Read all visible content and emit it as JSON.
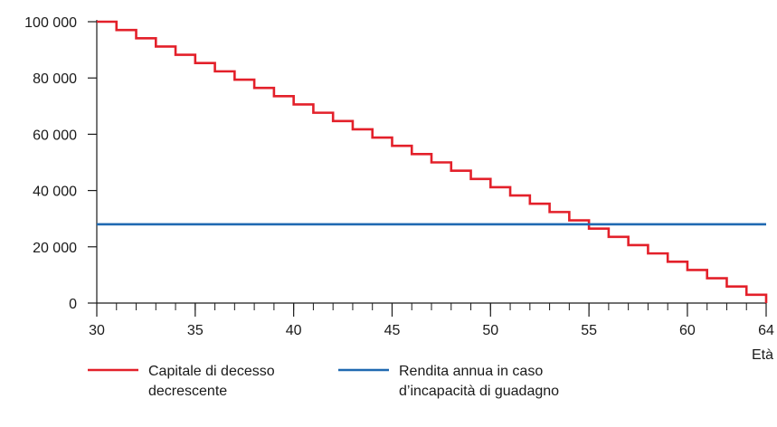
{
  "chart_data": {
    "type": "line",
    "title": "",
    "xlabel": "Età",
    "ylabel": "",
    "xlim": [
      30,
      64
    ],
    "ylim": [
      0,
      100000
    ],
    "x_ticks": [
      30,
      35,
      40,
      45,
      50,
      55,
      60,
      64
    ],
    "y_ticks": [
      0,
      20000,
      40000,
      60000,
      80000,
      100000
    ],
    "x_tick_labels": [
      "30",
      "35",
      "40",
      "45",
      "50",
      "55",
      "60",
      "64"
    ],
    "y_tick_labels": [
      "0",
      "20 000",
      "40 000",
      "60 000",
      "80 000",
      "100 000"
    ],
    "grid": false,
    "legend_position": "bottom",
    "series": [
      {
        "name": "Capitale di decesso decrescente",
        "legend_lines": [
          "Capitale di decesso",
          "decrescente"
        ],
        "color": "#e3202a",
        "style": "step",
        "x": [
          30,
          31,
          32,
          33,
          34,
          35,
          36,
          37,
          38,
          39,
          40,
          41,
          42,
          43,
          44,
          45,
          46,
          47,
          48,
          49,
          50,
          51,
          52,
          53,
          54,
          55,
          56,
          57,
          58,
          59,
          60,
          61,
          62,
          63,
          64
        ],
        "values": [
          100000,
          97059,
          94118,
          91176,
          88235,
          85294,
          82353,
          79412,
          76471,
          73529,
          70588,
          67647,
          64706,
          61765,
          58824,
          55882,
          52941,
          50000,
          47059,
          44118,
          41176,
          38235,
          35294,
          32353,
          29412,
          26471,
          23529,
          20588,
          17647,
          14706,
          11765,
          8824,
          5882,
          2941,
          0
        ]
      },
      {
        "name": "Rendita annua in caso d’incapacità di guadagno",
        "legend_lines": [
          "Rendita annua in caso",
          "d’incapacità di guadagno"
        ],
        "color": "#1f69b1",
        "style": "line",
        "x": [
          30,
          64
        ],
        "values": [
          28000,
          28000
        ]
      }
    ]
  }
}
